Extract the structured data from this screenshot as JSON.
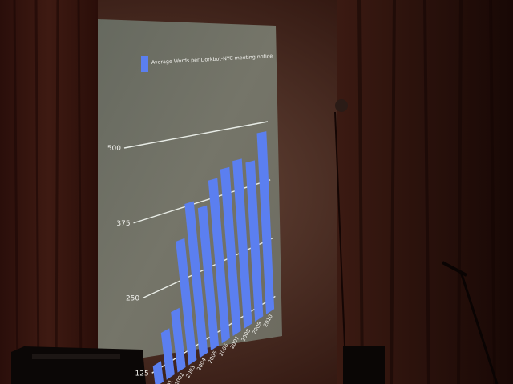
{
  "chart_data": {
    "type": "bar",
    "title": "",
    "xlabel": "",
    "ylabel": "",
    "legend": {
      "placement": "top-left",
      "entries": [
        "Average Words per Dorkbot-NYC meeting notice"
      ]
    },
    "grid": true,
    "ylim": [
      100,
      500
    ],
    "yticks": [
      125,
      250,
      375,
      500
    ],
    "categories": [
      "2000",
      "2001",
      "2002",
      "2003",
      "2004",
      "2005",
      "2006",
      "2007",
      "2008",
      "2009",
      "2010"
    ],
    "series": [
      {
        "name": "Average Words per Dorkbot-NYC meeting notice",
        "color": "#5b7ff0",
        "values": [
          135,
          180,
          205,
          320,
          380,
          365,
          410,
          425,
          435,
          425,
          480
        ]
      }
    ]
  }
}
